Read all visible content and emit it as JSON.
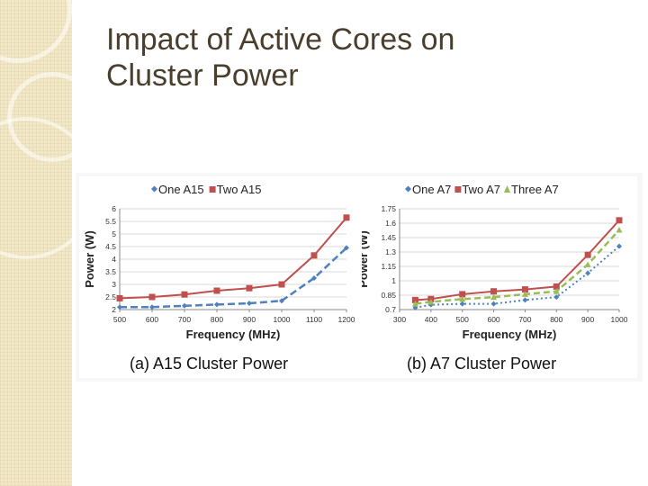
{
  "slide": {
    "title_line1": "Impact of Active Cores on",
    "title_line2": "Cluster Power"
  },
  "chart_data": [
    {
      "type": "line",
      "caption": "(a) A15 Cluster Power",
      "xlabel": "Frequency (MHz)",
      "ylabel": "Power (W)",
      "x": [
        500,
        600,
        700,
        800,
        900,
        1000,
        1100,
        1200
      ],
      "xticks": [
        "500",
        "600",
        "700",
        "800",
        "900",
        "1000",
        "1100",
        "1200"
      ],
      "xlim": [
        500,
        1200
      ],
      "ylim": [
        2,
        6
      ],
      "yticks": [
        "2",
        "2.5",
        "3",
        "3.5",
        "4",
        "4.5",
        "5",
        "5.5",
        "6"
      ],
      "series": [
        {
          "name": "One A15",
          "color": "#4f81bd",
          "values": [
            2.1,
            2.1,
            2.15,
            2.2,
            2.25,
            2.35,
            3.25,
            4.45
          ]
        },
        {
          "name": "Two  A15",
          "color": "#c0504d",
          "values": [
            2.45,
            2.5,
            2.6,
            2.75,
            2.85,
            3.0,
            4.15,
            5.65
          ]
        }
      ]
    },
    {
      "type": "line",
      "caption": "(b) A7 Cluster Power",
      "xlabel": "Frequency (MHz)",
      "ylabel": "Power (W)",
      "x": [
        350,
        400,
        500,
        600,
        700,
        800,
        900,
        1000
      ],
      "xticks": [
        "300",
        "400",
        "500",
        "600",
        "700",
        "800",
        "900",
        "1000"
      ],
      "xlim": [
        300,
        1000
      ],
      "ylim": [
        0.7,
        1.75
      ],
      "yticks": [
        "0.7",
        "0.85",
        "1",
        "1.15",
        "1.3",
        "1.45",
        "1.6",
        "1.75"
      ],
      "series": [
        {
          "name": "One A7",
          "color": "#4f81bd",
          "values": [
            0.72,
            0.75,
            0.76,
            0.76,
            0.8,
            0.83,
            1.08,
            1.36
          ]
        },
        {
          "name": "Two A7",
          "color": "#c0504d",
          "values": [
            0.8,
            0.81,
            0.86,
            0.89,
            0.91,
            0.94,
            1.27,
            1.63
          ]
        },
        {
          "name": "Three A7",
          "color": "#9bbb59",
          "values": [
            0.76,
            0.78,
            0.81,
            0.83,
            0.86,
            0.89,
            1.17,
            1.53
          ]
        }
      ]
    }
  ]
}
